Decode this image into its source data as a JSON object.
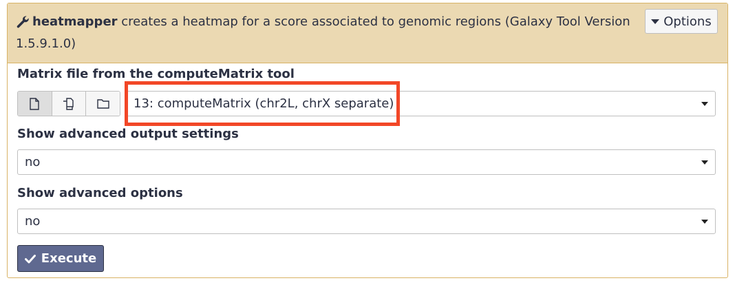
{
  "header": {
    "tool_name": "heatmapper",
    "description": " creates a heatmap for a score associated to genomic regions (Galaxy Tool Version 1.5.9.1.0)",
    "options_label": "Options"
  },
  "form": {
    "matrix": {
      "label": "Matrix file from the computeMatrix tool",
      "value": "13: computeMatrix (chr2L, chrX separate)"
    },
    "advanced_output": {
      "label": "Show advanced output settings",
      "value": "no"
    },
    "advanced_options": {
      "label": "Show advanced options",
      "value": "no"
    },
    "execute_label": "Execute"
  },
  "icons": [
    "wrench-icon",
    "file-icon",
    "files-icon",
    "folder-icon",
    "checkmark-icon",
    "caret-down-icon"
  ],
  "colors": {
    "header_bg": "#ebd9b2",
    "border": "#d8b365",
    "execute_bg": "#5f6990",
    "highlight": "#f24727"
  }
}
